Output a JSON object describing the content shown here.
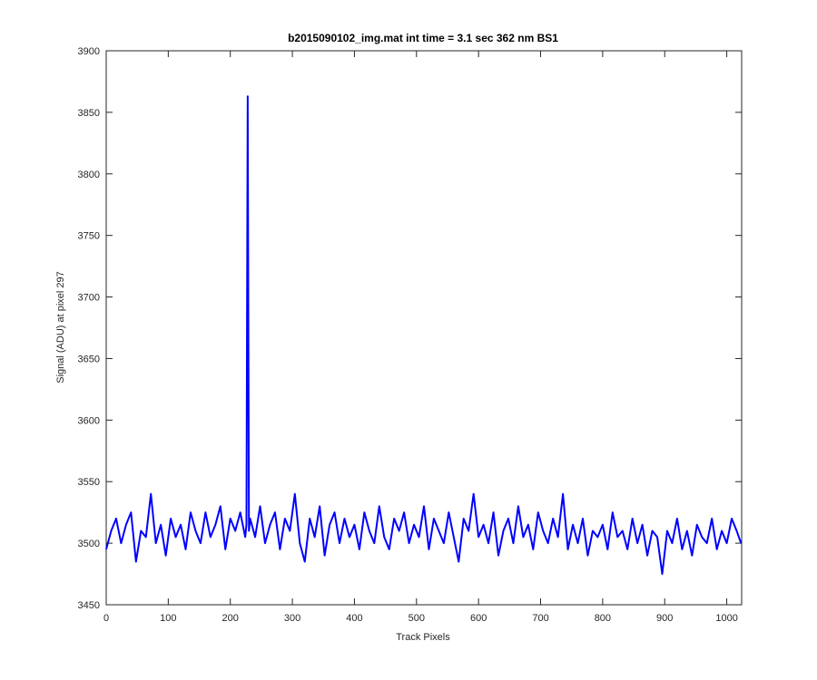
{
  "chart_data": {
    "type": "line",
    "title": "b2015090102_img.mat int time = 3.1 sec  362 nm BS1",
    "xlabel": "Track Pixels",
    "ylabel": "Signal (ADU) at pixel 297",
    "xlim": [
      0,
      1024
    ],
    "ylim": [
      3450,
      3900
    ],
    "xticks": [
      0,
      100,
      200,
      300,
      400,
      500,
      600,
      700,
      800,
      900,
      1000
    ],
    "yticks": [
      3450,
      3500,
      3550,
      3600,
      3650,
      3700,
      3750,
      3800,
      3850,
      3900
    ],
    "grid": false,
    "series": [
      {
        "color": "#0000ff",
        "x": [
          0,
          8,
          16,
          24,
          32,
          40,
          48,
          56,
          64,
          72,
          80,
          88,
          96,
          104,
          112,
          120,
          128,
          136,
          144,
          152,
          160,
          168,
          176,
          184,
          192,
          200,
          208,
          216,
          224,
          226,
          228,
          230,
          232,
          240,
          248,
          256,
          264,
          272,
          280,
          288,
          296,
          304,
          312,
          320,
          328,
          336,
          344,
          352,
          360,
          368,
          376,
          384,
          392,
          400,
          408,
          416,
          424,
          432,
          440,
          448,
          456,
          464,
          472,
          480,
          488,
          496,
          504,
          512,
          520,
          528,
          536,
          544,
          552,
          560,
          568,
          576,
          584,
          592,
          600,
          608,
          616,
          624,
          632,
          640,
          648,
          656,
          664,
          672,
          680,
          688,
          696,
          704,
          712,
          720,
          728,
          736,
          744,
          752,
          760,
          768,
          776,
          784,
          792,
          800,
          808,
          816,
          824,
          832,
          840,
          848,
          856,
          864,
          872,
          880,
          888,
          896,
          904,
          912,
          920,
          928,
          936,
          944,
          952,
          960,
          968,
          976,
          984,
          992,
          1000,
          1008,
          1016,
          1023
        ],
        "values": [
          3495,
          3510,
          3520,
          3500,
          3515,
          3525,
          3485,
          3510,
          3505,
          3540,
          3500,
          3515,
          3490,
          3520,
          3505,
          3515,
          3495,
          3525,
          3510,
          3500,
          3525,
          3505,
          3515,
          3530,
          3495,
          3520,
          3510,
          3525,
          3505,
          3515,
          3863,
          3510,
          3520,
          3505,
          3530,
          3500,
          3515,
          3525,
          3495,
          3520,
          3510,
          3540,
          3500,
          3485,
          3520,
          3505,
          3530,
          3490,
          3515,
          3525,
          3500,
          3520,
          3505,
          3515,
          3495,
          3525,
          3510,
          3500,
          3530,
          3505,
          3495,
          3520,
          3510,
          3525,
          3500,
          3515,
          3505,
          3530,
          3495,
          3520,
          3510,
          3500,
          3525,
          3505,
          3485,
          3520,
          3510,
          3540,
          3505,
          3515,
          3500,
          3525,
          3490,
          3510,
          3520,
          3500,
          3530,
          3505,
          3515,
          3495,
          3525,
          3510,
          3500,
          3520,
          3505,
          3540,
          3495,
          3515,
          3500,
          3520,
          3490,
          3510,
          3505,
          3515,
          3495,
          3525,
          3505,
          3510,
          3495,
          3520,
          3500,
          3515,
          3490,
          3510,
          3505,
          3475,
          3510,
          3500,
          3520,
          3495,
          3510,
          3490,
          3515,
          3505,
          3500,
          3520,
          3495,
          3510,
          3500,
          3520,
          3510,
          3500
        ]
      }
    ]
  }
}
